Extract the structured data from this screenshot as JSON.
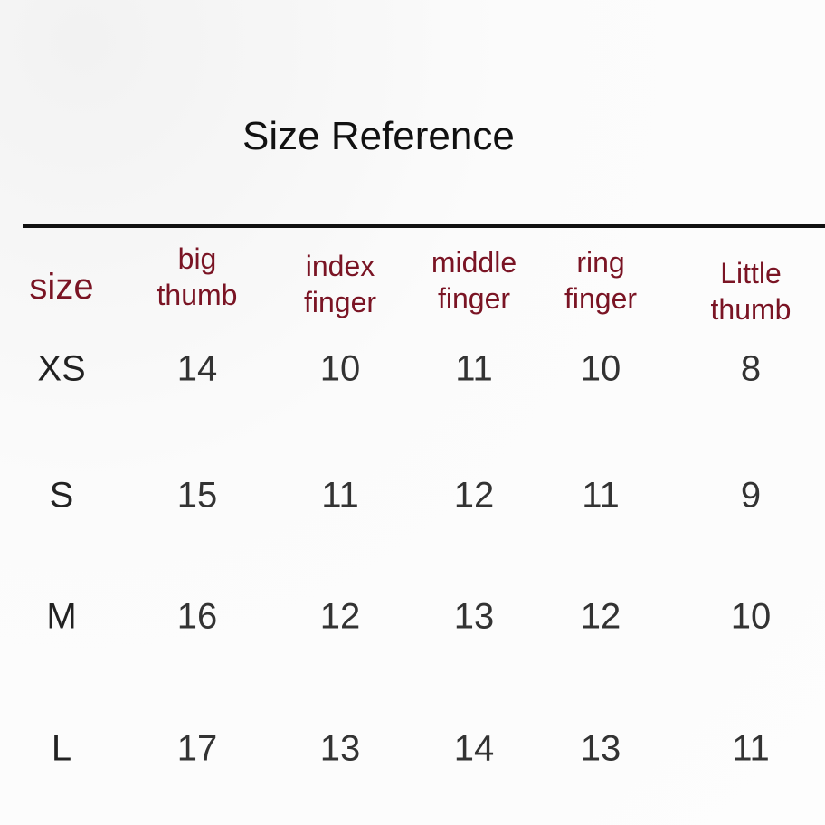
{
  "title": "Size Reference",
  "table": {
    "headers": [
      "size",
      "big thumb",
      "index finger",
      "middle finger",
      "ring finger",
      "Little thumb"
    ],
    "header_lines": [
      [
        "size"
      ],
      [
        "big",
        "thumb"
      ],
      [
        "index",
        "finger"
      ],
      [
        "middle",
        "finger"
      ],
      [
        "ring",
        "finger"
      ],
      [
        "Little",
        "thumb"
      ]
    ],
    "rows": [
      {
        "size": "XS",
        "values": [
          "14",
          "10",
          "11",
          "10",
          "8"
        ]
      },
      {
        "size": "S",
        "values": [
          "15",
          "11",
          "12",
          "11",
          "9"
        ]
      },
      {
        "size": "M",
        "values": [
          "16",
          "12",
          "13",
          "12",
          "10"
        ]
      },
      {
        "size": "L",
        "values": [
          "17",
          "13",
          "14",
          "13",
          "11"
        ]
      }
    ]
  },
  "colors": {
    "header": "#7a1424",
    "text": "#333333",
    "rule": "#111111"
  }
}
